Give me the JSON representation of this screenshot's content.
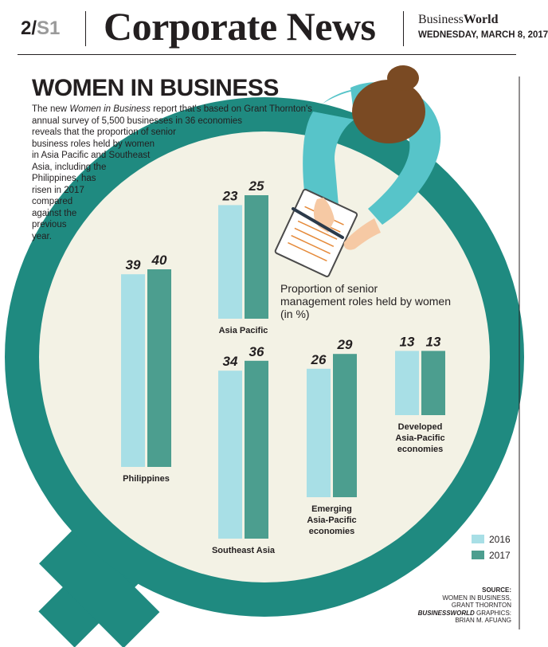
{
  "header": {
    "page_number": "2/",
    "section": "S1",
    "masthead": "Corporate News",
    "brand_a": "Business",
    "brand_b": "World",
    "date": "WEDNESDAY, MARCH 8, 2017"
  },
  "story": {
    "title": "WOMEN IN BUSINESS",
    "intro_lines": [
      [
        "The new ",
        "Women in Business",
        " report that's based on Grant Thornton's"
      ],
      [
        "annual survey of 5,500 businesses in 36 economies",
        "",
        ""
      ],
      [
        "reveals that the proportion of senior",
        "",
        ""
      ],
      [
        "business roles held by women",
        "",
        ""
      ],
      [
        "in Asia Pacific and Southeast",
        "",
        ""
      ],
      [
        "Asia, including the",
        "",
        ""
      ],
      [
        "Philippines, has",
        "",
        ""
      ],
      [
        "risen in 2017",
        "",
        ""
      ],
      [
        "compared",
        "",
        ""
      ],
      [
        "against the",
        "",
        ""
      ],
      [
        "previous",
        "",
        ""
      ],
      [
        "year.",
        "",
        ""
      ]
    ]
  },
  "source": {
    "lines": [
      "SOURCE:",
      "WOMEN IN BUSINESS,",
      "GRANT THORNTON",
      "GRAPHICS:",
      "BRIAN M. AFUANG"
    ],
    "graphics_brand": "BUSINESSWORLD"
  },
  "colors": {
    "ring": "#1f8a80",
    "ring_inner": "#f3f2e5",
    "bar_2016": "#a8dfe6",
    "bar_2017": "#4c9e8f",
    "sleeve": "#57c4c9",
    "hair": "#7a4a23",
    "skin": "#f6c9a4"
  },
  "chart_data": {
    "type": "bar",
    "title": "Proportion of senior management roles held by women (in %)",
    "title_lines": [
      "Proportion of senior",
      "management roles held by women",
      "(in %)"
    ],
    "unit": "%",
    "categories": [
      "Philippines",
      "Asia Pacific",
      "Southeast Asia",
      "Emerging Asia-Pacific economies",
      "Developed Asia-Pacific economies"
    ],
    "category_label_lines": [
      [
        "Philippines"
      ],
      [
        "Asia Pacific"
      ],
      [
        "Southeast Asia"
      ],
      [
        "Emerging",
        "Asia-Pacific",
        "economies"
      ],
      [
        "Developed",
        "Asia-Pacific",
        "economies"
      ]
    ],
    "series": [
      {
        "name": "2016",
        "values": [
          39,
          23,
          34,
          26,
          13
        ]
      },
      {
        "name": "2017",
        "values": [
          40,
          25,
          36,
          29,
          13
        ]
      }
    ],
    "legend": [
      "2016",
      "2017"
    ],
    "legend_position": "bottom-right"
  }
}
